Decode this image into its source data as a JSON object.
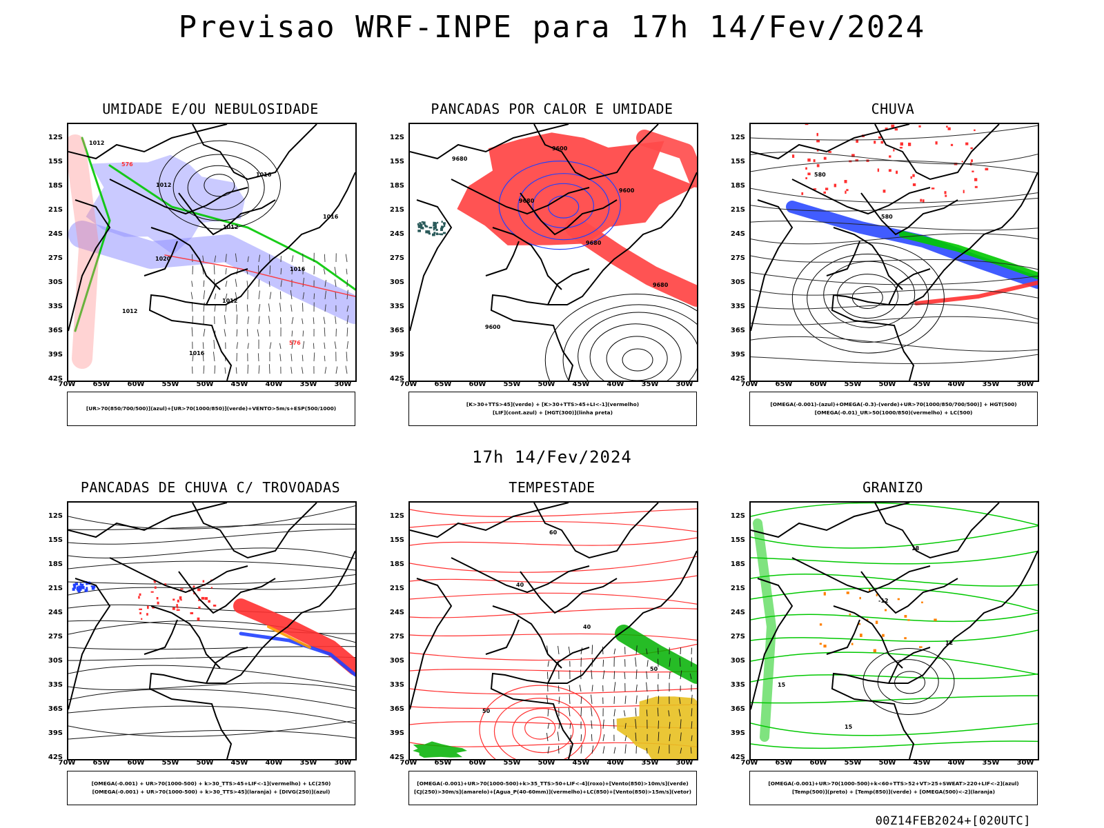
{
  "title": "Previsao WRF-INPE  para 17h 14/Fev/2024",
  "subtitle": "17h 14/Fev/2024",
  "footer": "00Z14FEB2024+[020UTC]",
  "lat_labels": [
    "12S",
    "15S",
    "18S",
    "21S",
    "24S",
    "27S",
    "30S",
    "33S",
    "36S",
    "39S",
    "42S"
  ],
  "lon_labels": [
    "70W",
    "65W",
    "60W",
    "55W",
    "50W",
    "45W",
    "40W",
    "35W",
    "30W"
  ],
  "panels": [
    {
      "title": "UMIDADE E/OU NEBULOSIDADE",
      "legend": [
        "[UR>70(850/700/500)](azul)+[UR>70(1000/850)](verde)+VENTO>5m/s+ESP(500/1000)"
      ],
      "labels": [
        "1012",
        "1012",
        "1012",
        "1016",
        "1012",
        "1016",
        "1016",
        "1016",
        "1020",
        "1012",
        "576",
        "576"
      ],
      "colors": [
        "#3a3aff",
        "#00c800",
        "#ff3030",
        "#000000"
      ]
    },
    {
      "title": "PANCADAS POR CALOR E UMIDADE",
      "legend": [
        "[K>30+TTS>45](verde) + [K>30+TTS>45+LI<-1](vermelho)",
        "[LIF](cont.azul) + [HGT(300)](linha preta)"
      ],
      "labels": [
        "9680",
        "9680",
        "9680",
        "9680",
        "9600",
        "9600",
        "9600"
      ],
      "colors": [
        "#ff4a4a",
        "#2a5a5a",
        "#2040ff",
        "#000000"
      ]
    },
    {
      "title": "CHUVA",
      "legend": [
        "[OMEGA(-0.001)-(azul)+OMEGA(-0.3)-(verde)+UR>70(1000/850/700/500)] + HGT(500)",
        "[OMEGA(-0.01)_UR>50(1000/850)(vermelho) + LC(500)"
      ],
      "labels": [
        "580",
        "580"
      ],
      "colors": [
        "#2040ff",
        "#00c800",
        "#ff3030",
        "#000000"
      ]
    },
    {
      "title": "PANCADAS DE CHUVA C/ TROVOADAS",
      "legend": [
        "[OMEGA(-0.001) + UR>70(1000-500) + k>30_TTS>45+LIF<-1](vermelho) + LC(250)",
        "[OMEGA(-0.001) + UR>70(1000-500) + k>30_TTS>45](laranja) + [DIVG(250)](azul)"
      ],
      "labels": [],
      "colors": [
        "#ff3030",
        "#ff9900",
        "#2040ff",
        "#000000"
      ]
    },
    {
      "title": "TEMPESTADE",
      "legend": [
        "[OMEGA(-0.001)+UR>70(1000-500)+k>35_TTS>50+LIF<-4](roxo)+[Vento(850)>10m/s](verde)",
        "[CJ(250)>30m/s](amarelo)+[Agua_P(40-60mm)](vermelho)+LC(850)+[Vento(850)>15m/s](vetor)"
      ],
      "labels": [
        "40",
        "40",
        "50",
        "50",
        "60"
      ],
      "colors": [
        "#ff3030",
        "#00b000",
        "#e8c020",
        "#000000"
      ]
    },
    {
      "title": "GRANIZO",
      "legend": [
        "[OMEGA(-0.001)+UR>70(1000-500)+k<60+TTS>52+VT>25+SWEAT>220+LIF<-2](azul)",
        "[Temp(500)](preto) + [Temp(850)](verde) + [OMEGA(500)<-2](laranja)"
      ],
      "labels": [
        "-12",
        "12",
        "15",
        "15",
        "18"
      ],
      "colors": [
        "#00c800",
        "#ff8000",
        "#000000"
      ]
    }
  ]
}
